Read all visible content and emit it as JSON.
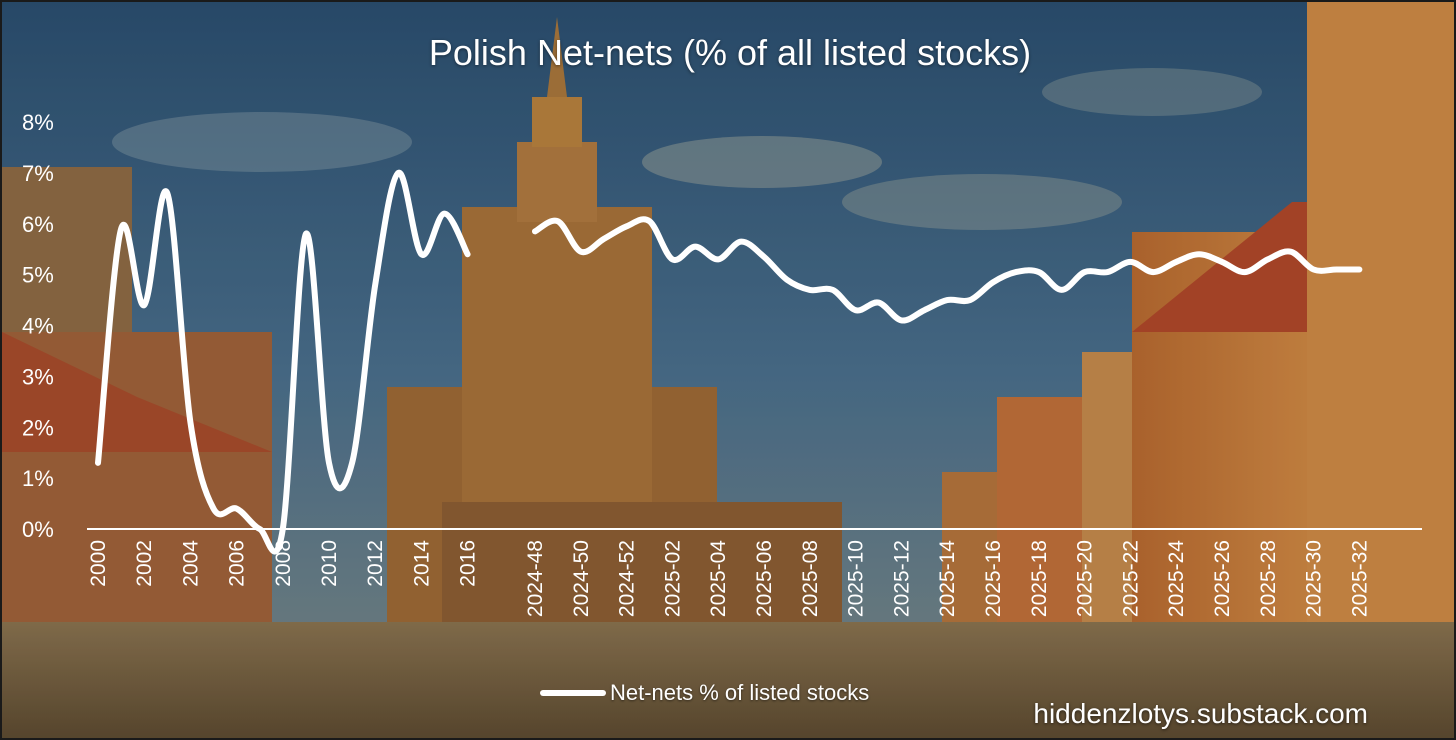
{
  "chart_data": {
    "type": "line",
    "title": "Polish Net-nets (% of all listed stocks)",
    "ylabel": "",
    "xlabel": "",
    "ylim": [
      0,
      8
    ],
    "y_tick_labels": [
      "0%",
      "1%",
      "2%",
      "3%",
      "4%",
      "5%",
      "6%",
      "7%",
      "8%"
    ],
    "legend": {
      "label": "Net-nets % of listed stocks",
      "placement": "bottom-center"
    },
    "line_color": "#ffffff",
    "segments": [
      {
        "name": "annual",
        "x": [
          "2000",
          "2001",
          "2002",
          "2003",
          "2004",
          "2005",
          "2006",
          "2007",
          "2008",
          "2009",
          "2010",
          "2011",
          "2012",
          "2013",
          "2014",
          "2015",
          "2016"
        ],
        "values": [
          1.3,
          5.9,
          4.4,
          6.6,
          2.1,
          0.4,
          0.4,
          0.0,
          0.0,
          5.8,
          1.3,
          1.3,
          4.8,
          7.0,
          5.4,
          6.2,
          5.4
        ]
      },
      {
        "name": "weekly",
        "x": [
          "2024-48",
          "2024-49",
          "2024-50",
          "2024-51",
          "2024-52",
          "2025-01",
          "2025-02",
          "2025-03",
          "2025-04",
          "2025-05",
          "2025-06",
          "2025-07",
          "2025-08",
          "2025-09",
          "2025-10",
          "2025-11",
          "2025-12",
          "2025-13",
          "2025-14",
          "2025-15",
          "2025-16",
          "2025-17",
          "2025-18",
          "2025-19",
          "2025-20",
          "2025-21",
          "2025-22",
          "2025-23",
          "2025-24",
          "2025-25",
          "2025-26",
          "2025-27",
          "2025-28",
          "2025-29",
          "2025-30",
          "2025-31",
          "2025-32"
        ],
        "values": [
          5.85,
          6.05,
          5.45,
          5.7,
          5.95,
          6.05,
          5.3,
          5.55,
          5.3,
          5.65,
          5.35,
          4.9,
          4.7,
          4.7,
          4.3,
          4.45,
          4.1,
          4.3,
          4.5,
          4.5,
          4.85,
          5.05,
          5.05,
          4.7,
          5.05,
          5.05,
          5.25,
          5.05,
          5.25,
          5.4,
          5.25,
          5.05,
          5.3,
          5.45,
          5.1,
          5.1,
          5.1
        ]
      }
    ],
    "x_tick_labels": [
      "2000",
      "2002",
      "2004",
      "2006",
      "2008",
      "2010",
      "2012",
      "2014",
      "2016",
      "2024-48",
      "2024-50",
      "2024-52",
      "2025-02",
      "2025-04",
      "2025-06",
      "2025-08",
      "2025-10",
      "2025-12",
      "2025-14",
      "2025-16",
      "2025-18",
      "2025-20",
      "2025-22",
      "2025-24",
      "2025-26",
      "2025-28",
      "2025-30",
      "2025-32"
    ]
  },
  "footer": {
    "watermark": "hiddenzlotys.substack.com"
  },
  "colors": {
    "sky_top": "#2f5577",
    "sky_mid": "#4a7090",
    "ground": "#6b5a3c",
    "building": "#b47838",
    "building_dark": "#8a5426",
    "palace": "#a36b33"
  }
}
